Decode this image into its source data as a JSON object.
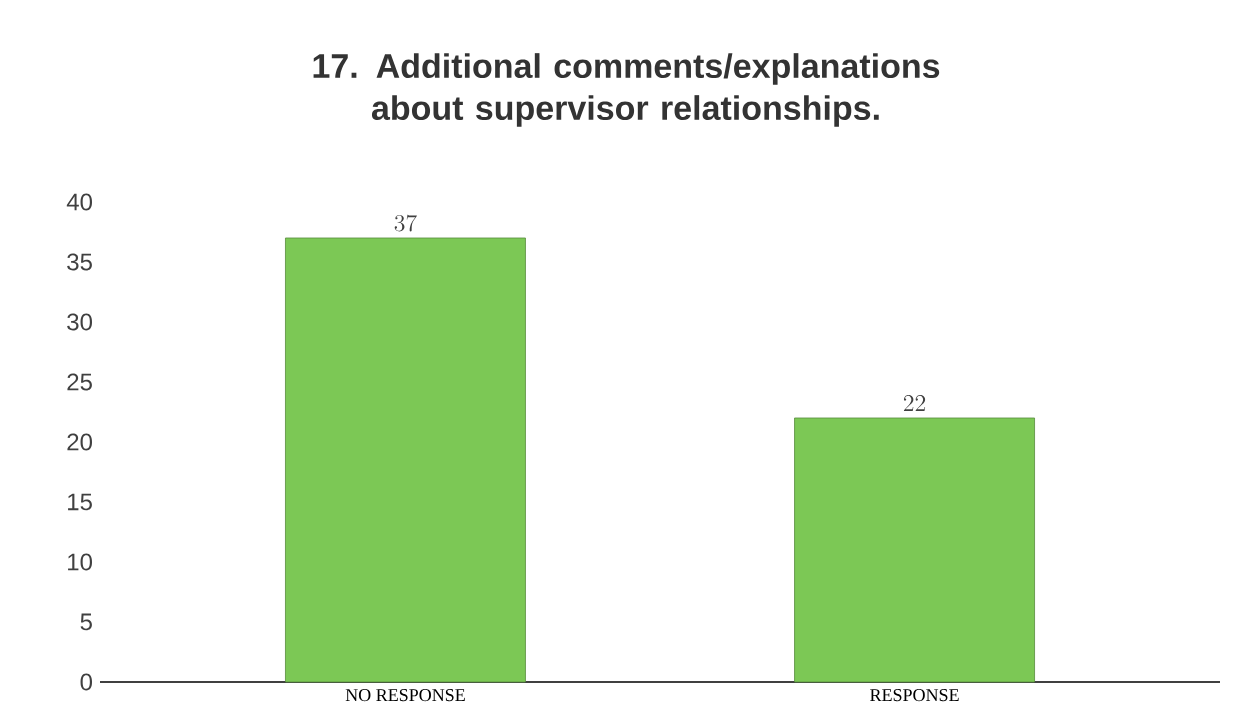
{
  "chart_data": {
    "type": "bar",
    "title": "17. Additional comments/explanations about supervisor relationships.",
    "categories": [
      "NO RESPONSE",
      "RESPONSE"
    ],
    "values": [
      37,
      22
    ],
    "color": "#7cc855",
    "ylim": [
      0,
      40
    ],
    "yticks": [
      0,
      5,
      10,
      15,
      20,
      25,
      30,
      35,
      40
    ],
    "data_labels": true
  }
}
